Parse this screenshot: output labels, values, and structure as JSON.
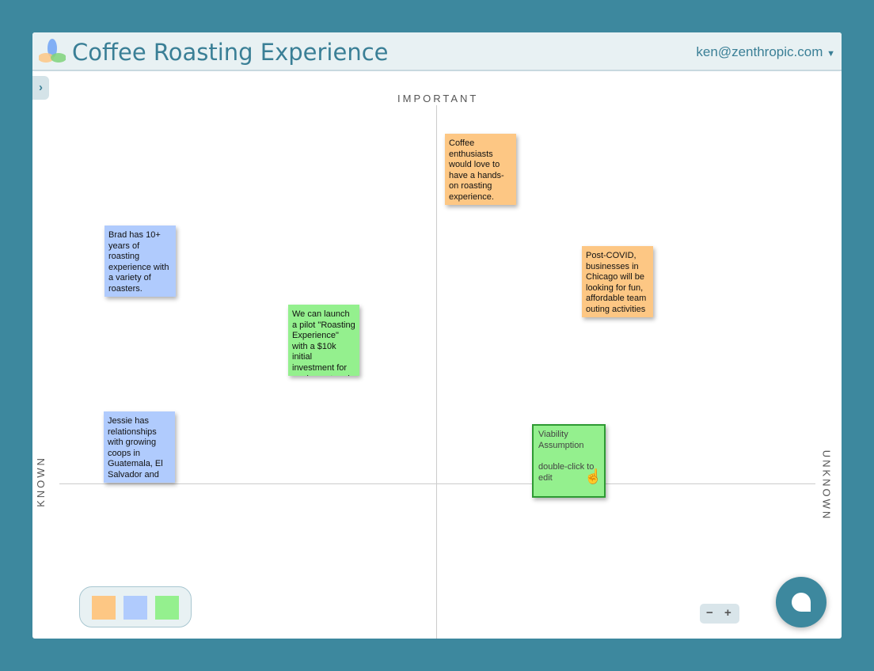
{
  "header": {
    "title": "Coffee Roasting Experience",
    "user": "ken@zenthropic.com"
  },
  "sidebar_toggle": "›",
  "axes": {
    "top": "IMPORTANT",
    "left": "KNOWN",
    "right": "UNKNOWN"
  },
  "notes": [
    {
      "text": "Coffee enthusiasts would love to have a hands-on roasting experience.",
      "color": "#fdc784"
    },
    {
      "text": "Brad has 10+ years of roasting experience with a variety of roasters.",
      "color": "#b0cbfd"
    },
    {
      "text": "Post-COVID, businesses in Chicago will be looking for fun, affordable team outing activities",
      "color": "#fdc784"
    },
    {
      "text": "We can launch a pilot \"Roasting Experience\" with a $10k initial investment for equipment and",
      "color": "#94f08e"
    },
    {
      "text": "Jessie has relationships with growing coops in Guatemala, El Salvador and",
      "color": "#b0cbfd"
    }
  ],
  "selected_note": {
    "title": "Viability Assumption",
    "hint": "double-click to edit",
    "color": "#94f08e"
  },
  "palette": [
    "#fdc784",
    "#b0cbfd",
    "#94f08e"
  ],
  "zoom": {
    "minus": "−",
    "plus": "+"
  }
}
